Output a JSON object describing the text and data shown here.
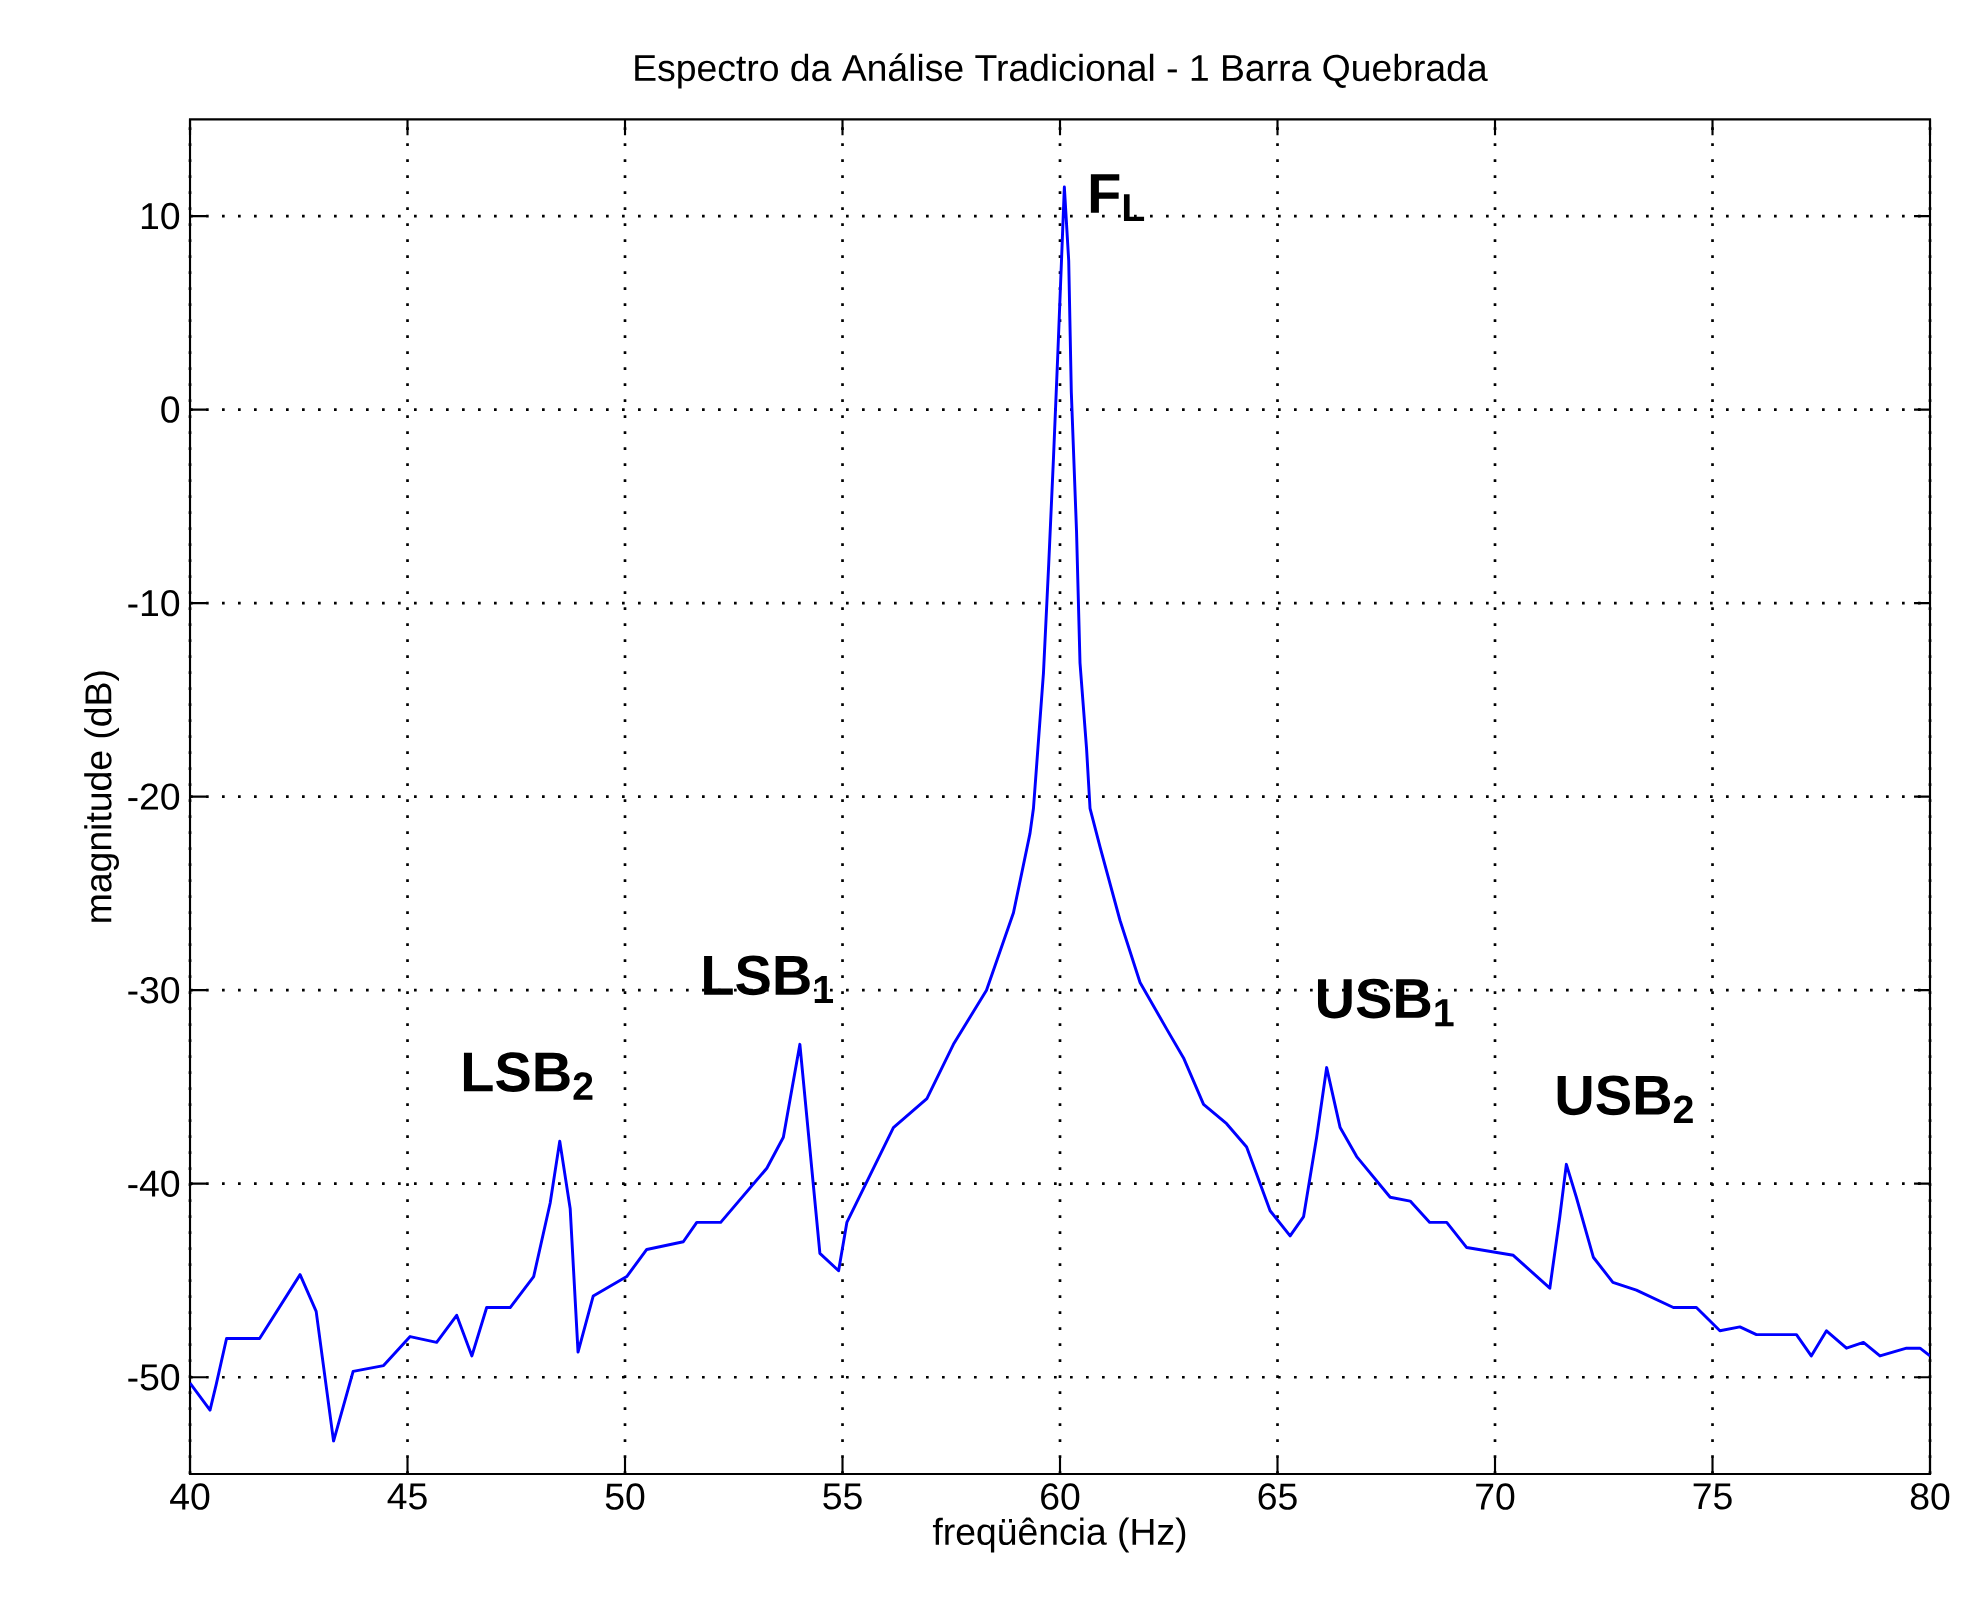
{
  "chart_data": {
    "type": "line",
    "title": "Espectro da Análise Tradicional - 1 Barra Quebrada",
    "xlabel": "freqüência (Hz)",
    "ylabel": "magnitude (dB)",
    "xlim": [
      40,
      80
    ],
    "ylim": [
      -55,
      15
    ],
    "xticks": [
      40,
      45,
      50,
      55,
      60,
      65,
      70,
      75,
      80
    ],
    "yticks": [
      -50,
      -40,
      -30,
      -20,
      -10,
      0,
      10
    ],
    "grid": true,
    "x": [
      40.0,
      40.46,
      40.6,
      40.84,
      41.6,
      42.53,
      42.9,
      43.3,
      43.75,
      44.45,
      45.06,
      45.67,
      46.13,
      46.48,
      46.82,
      47.36,
      47.9,
      48.28,
      48.5,
      48.74,
      48.92,
      49.27,
      50.04,
      50.5,
      51.34,
      51.65,
      52.2,
      53.26,
      53.64,
      54.02,
      54.48,
      54.91,
      55.1,
      56.17,
      56.94,
      57.55,
      58.31,
      58.93,
      59.31,
      59.39,
      59.62,
      59.74,
      59.85,
      59.95,
      60.05,
      60.1,
      60.2,
      60.26,
      60.38,
      60.46,
      60.61,
      60.69,
      60.92,
      61.38,
      61.84,
      62.45,
      62.84,
      63.3,
      63.83,
      64.29,
      64.83,
      65.29,
      65.6,
      65.9,
      66.13,
      66.44,
      66.82,
      67.59,
      68.05,
      68.5,
      68.89,
      69.35,
      70.42,
      71.26,
      71.49,
      71.64,
      71.87,
      72.26,
      72.71,
      73.25,
      74.1,
      74.63,
      75.17,
      75.63,
      76.01,
      76.93,
      77.27,
      77.62,
      78.08,
      78.47,
      78.85,
      79.46,
      79.77,
      80.0
    ],
    "series": [
      {
        "color": "#0000ff",
        "values": [
          -50.3,
          -51.7,
          -50.4,
          -48.0,
          -48.0,
          -44.7,
          -46.6,
          -53.3,
          -49.7,
          -49.4,
          -47.9,
          -48.2,
          -46.8,
          -48.9,
          -46.4,
          -46.4,
          -44.8,
          -41.0,
          -37.8,
          -41.3,
          -48.7,
          -45.8,
          -44.8,
          -43.4,
          -43.0,
          -42.0,
          -42.0,
          -39.2,
          -37.6,
          -32.8,
          -43.6,
          -44.5,
          -42.0,
          -37.1,
          -35.6,
          -32.8,
          -30.0,
          -26.0,
          -21.9,
          -20.6,
          -13.6,
          -8.0,
          -2.5,
          2.9,
          8.6,
          11.5,
          7.7,
          0.9,
          -6.3,
          -13.1,
          -17.5,
          -20.6,
          -22.6,
          -26.4,
          -29.6,
          -32.0,
          -33.5,
          -35.9,
          -36.9,
          -38.1,
          -41.4,
          -42.7,
          -41.7,
          -37.6,
          -34.0,
          -37.1,
          -38.6,
          -40.7,
          -40.9,
          -42.0,
          -42.0,
          -43.3,
          -43.7,
          -45.4,
          -41.7,
          -39.0,
          -40.7,
          -43.8,
          -45.1,
          -45.5,
          -46.4,
          -46.4,
          -47.6,
          -47.4,
          -47.8,
          -47.8,
          -48.9,
          -47.6,
          -48.5,
          -48.2,
          -48.9,
          -48.5,
          -48.5,
          -48.9
        ]
      }
    ],
    "annotations": [
      {
        "text": "F$_{L}$",
        "x": 60.1,
        "y": 11.5
      },
      {
        "text": "LSB$_{1}$",
        "x": 54.02,
        "y": -32.8
      },
      {
        "text": "LSB$_{2}$",
        "x": 48.5,
        "y": -37.8
      },
      {
        "text": "USB$_{1}$",
        "x": 66.13,
        "y": -34.0
      },
      {
        "text": "USB$_{2}$",
        "x": 71.64,
        "y": -39.0
      }
    ]
  }
}
